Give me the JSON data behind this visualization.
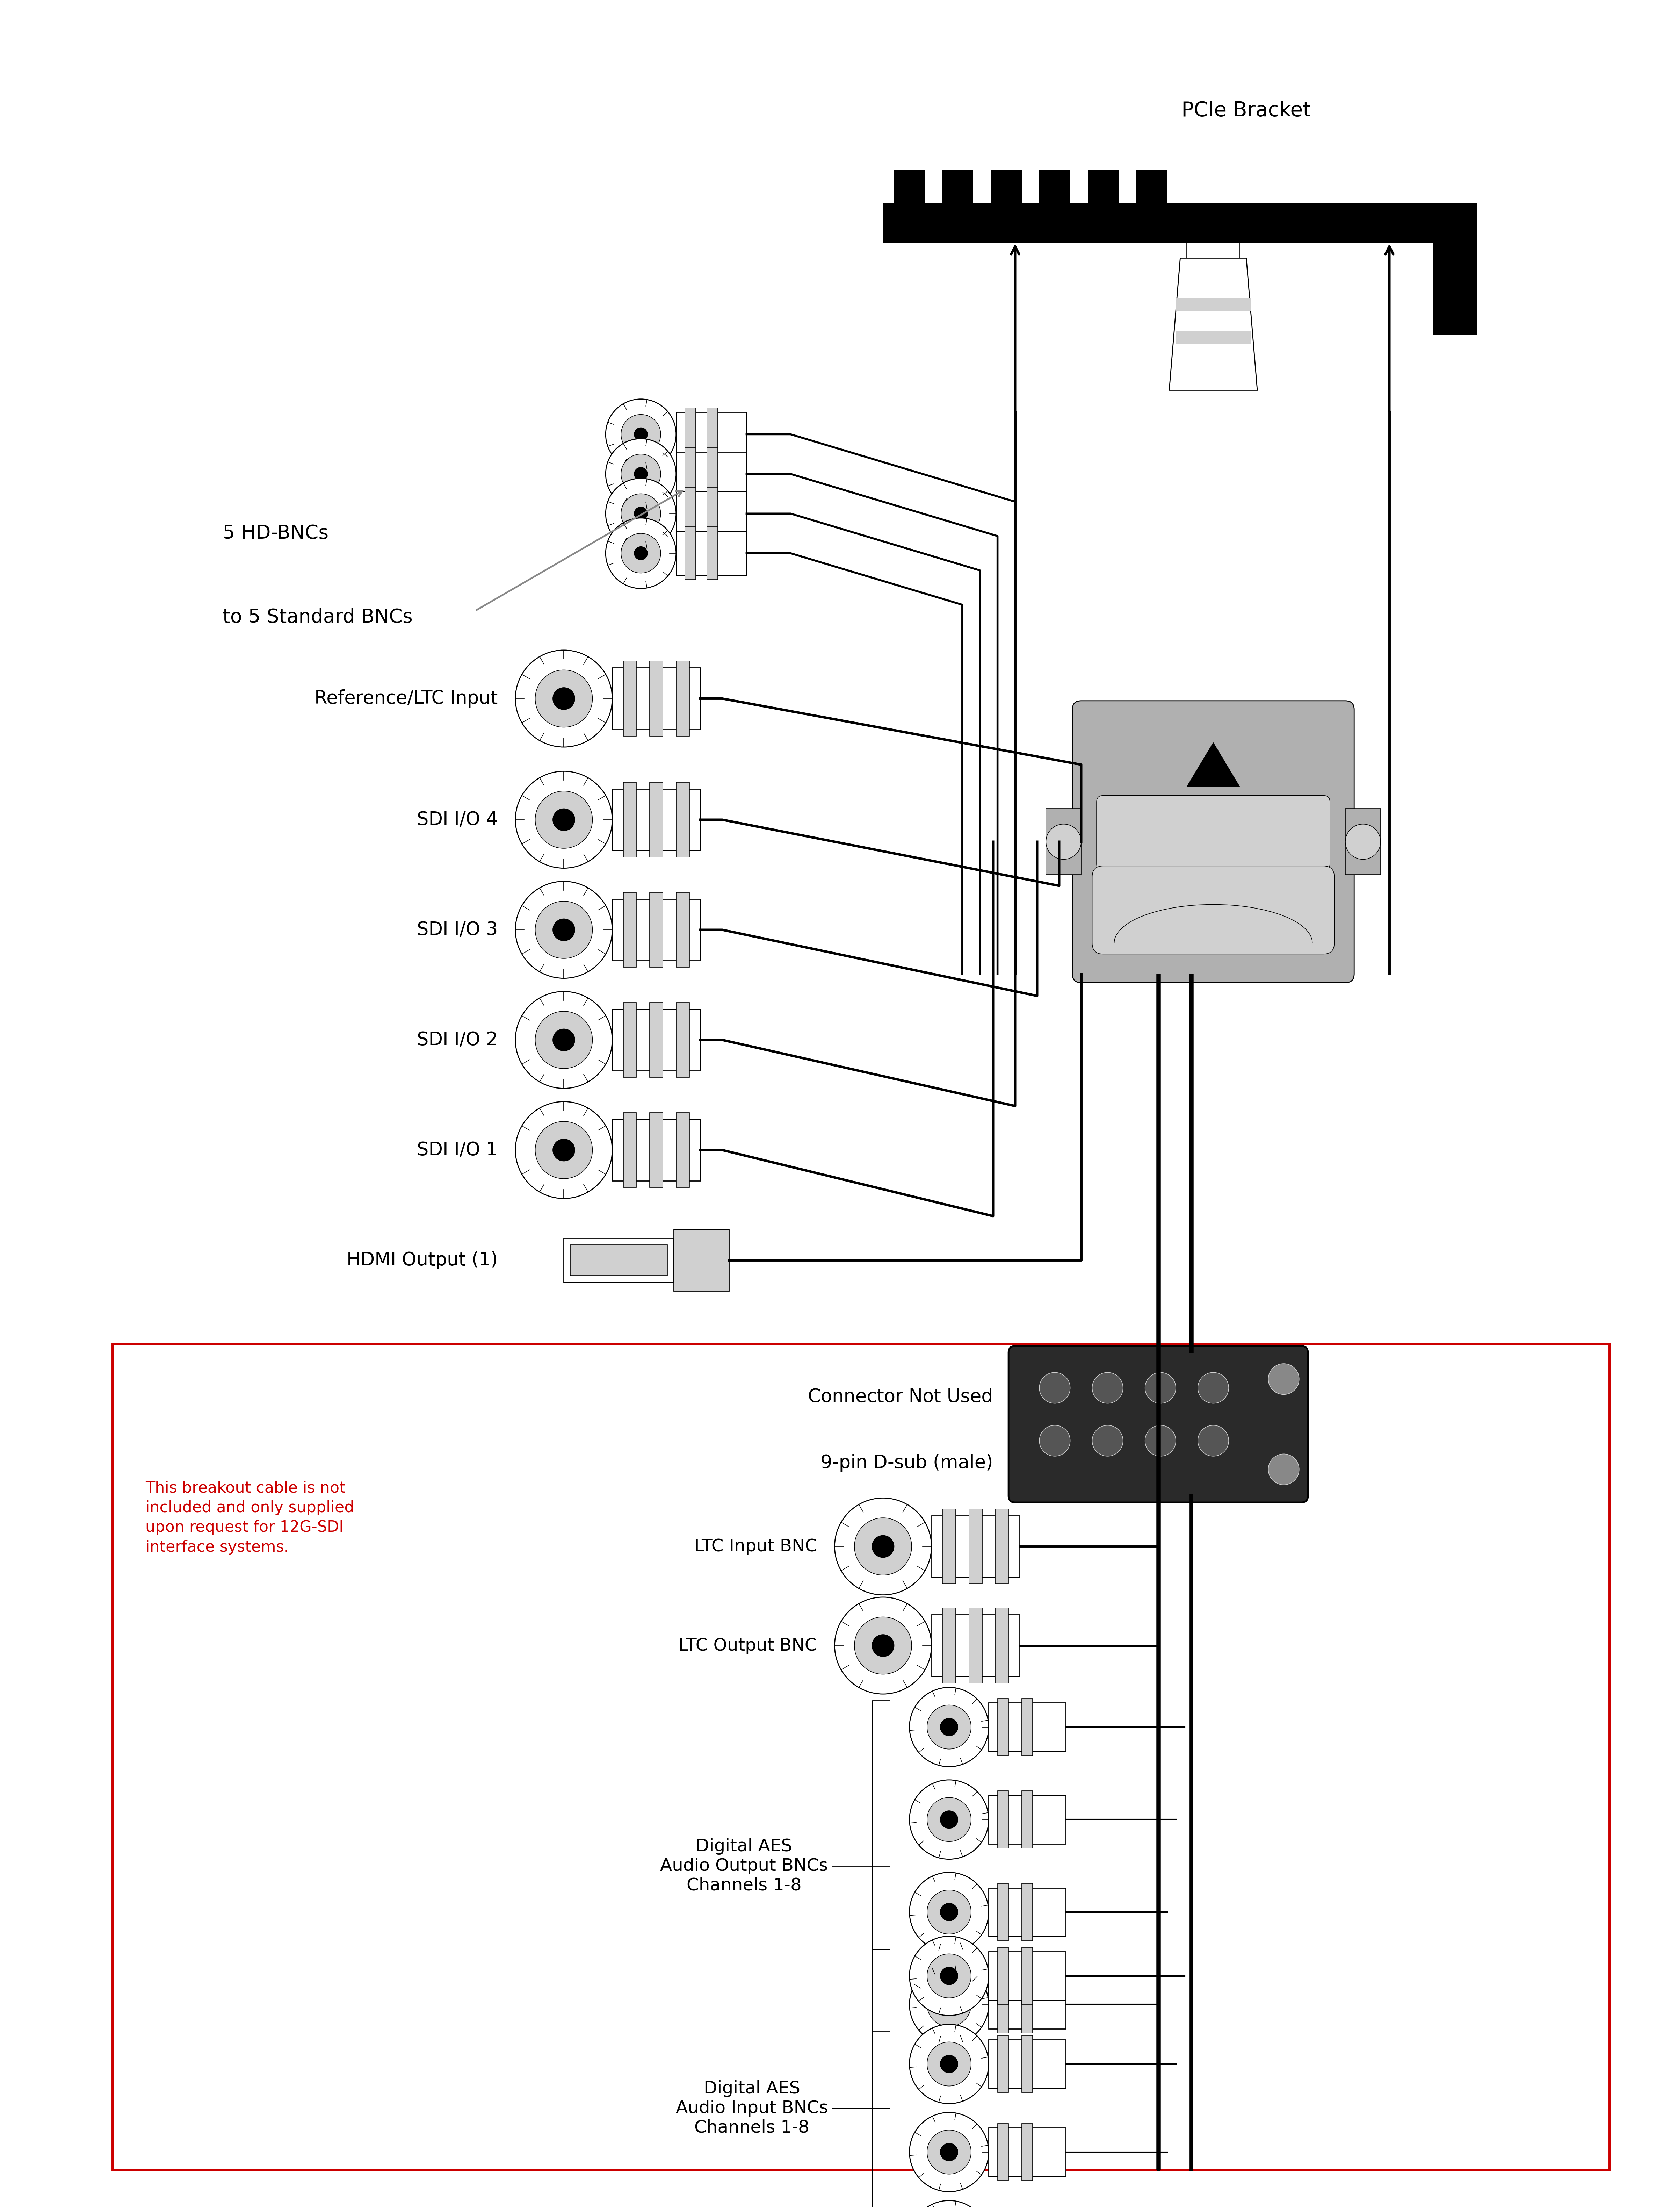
{
  "fig_width": 47.39,
  "fig_height": 63.28,
  "bg_color": "#ffffff",
  "labels": {
    "pcie_bracket": "PCIe Bracket",
    "hd_bnc_line1": "5 HD-BNCs",
    "hd_bnc_line2": "to 5 Standard BNCs",
    "ref_ltc": "Reference/LTC Input",
    "sdi4": "SDI I/O 4",
    "sdi3": "SDI I/O 3",
    "sdi2": "SDI I/O 2",
    "sdi1": "SDI I/O 1",
    "hdmi": "HDMI Output (1)",
    "connector_not_used_line1": "Connector Not Used",
    "connector_not_used_line2": "9-pin D-sub (male)",
    "ltc_input": "LTC Input BNC",
    "ltc_output": "LTC Output BNC",
    "digital_aes_out_line1": "Digital AES",
    "digital_aes_out_line2": "Audio Output BNCs",
    "digital_aes_out_line3": "Channels 1-8",
    "digital_aes_in_line1": "Digital AES",
    "digital_aes_in_line2": "Audio Input BNCs",
    "digital_aes_in_line3": "Channels 1-8",
    "breakout_note": "This breakout cable is not\nincluded and only supplied\nupon request for 12G-SDI\ninterface systems."
  },
  "colors": {
    "black": "#000000",
    "white": "#ffffff",
    "gray": "#888888",
    "light_gray": "#d0d0d0",
    "mid_gray": "#aaaaaa",
    "dark_gray": "#444444",
    "red": "#cc0000",
    "connector_gray": "#b0b0b0",
    "bracket_black": "#111111"
  }
}
